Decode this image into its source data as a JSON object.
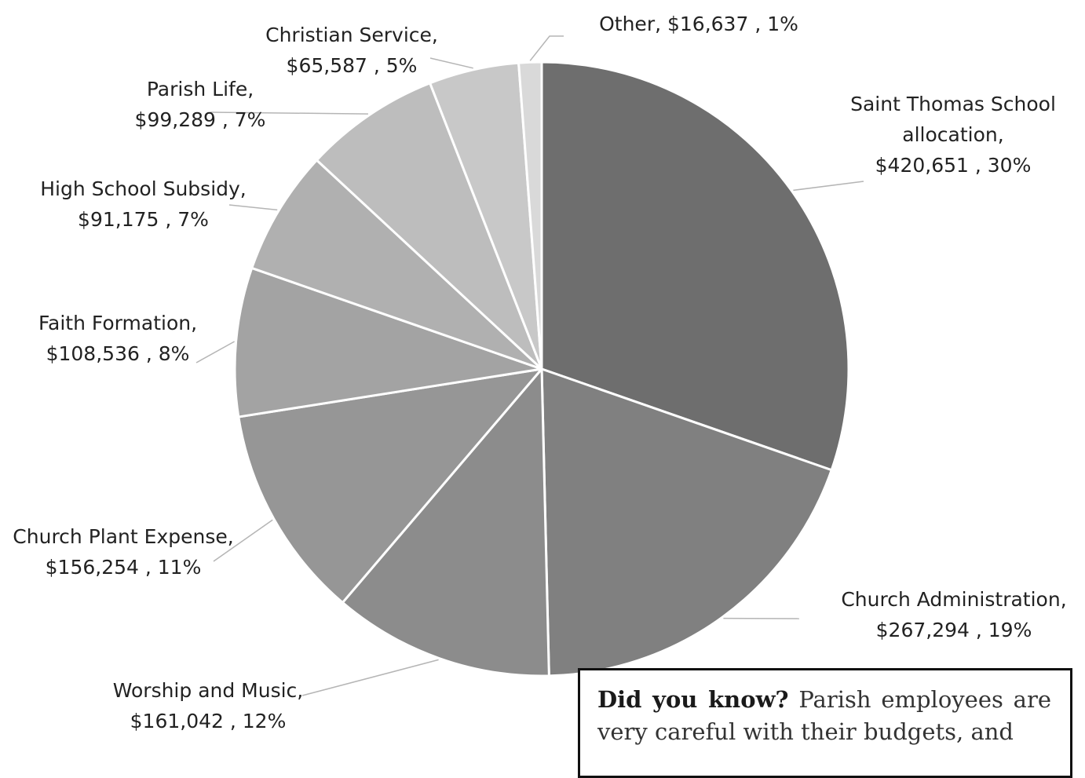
{
  "chart_data": {
    "type": "pie",
    "start_angle_deg": 0,
    "direction": "clockwise",
    "slices": [
      {
        "label_lines": [
          "Saint Thomas School",
          "allocation,",
          "$420,651 , 30%"
        ],
        "value": 420651,
        "percent": 30,
        "color": "#6e6e6e"
      },
      {
        "label_lines": [
          "Church Administration,",
          "$267,294 , 19%"
        ],
        "value": 267294,
        "percent": 19,
        "color": "#808080"
      },
      {
        "label_lines": [
          "Worship and Music,",
          "$161,042 , 12%"
        ],
        "value": 161042,
        "percent": 12,
        "color": "#8c8c8c"
      },
      {
        "label_lines": [
          "Church Plant Expense,",
          "$156,254 , 11%"
        ],
        "value": 156254,
        "percent": 11,
        "color": "#969696"
      },
      {
        "label_lines": [
          "Faith Formation,",
          "$108,536 , 8%"
        ],
        "value": 108536,
        "percent": 8,
        "color": "#a3a3a3"
      },
      {
        "label_lines": [
          "High School Subsidy,",
          "$91,175 , 7%"
        ],
        "value": 91175,
        "percent": 7,
        "color": "#b0b0b0"
      },
      {
        "label_lines": [
          "Parish Life,",
          "$99,289 , 7%"
        ],
        "value": 99289,
        "percent": 7,
        "color": "#bdbdbd"
      },
      {
        "label_lines": [
          "Christian Service,",
          "$65,587 , 5%"
        ],
        "value": 65587,
        "percent": 5,
        "color": "#c8c8c8"
      },
      {
        "label_lines": [
          "Other, $16,637 , 1%"
        ],
        "value": 16637,
        "percent": 1,
        "color": "#d9d9d9"
      }
    ]
  },
  "callout": {
    "lead": "Did you know?",
    "text": "Parish employees are very careful with their budgets, and"
  }
}
